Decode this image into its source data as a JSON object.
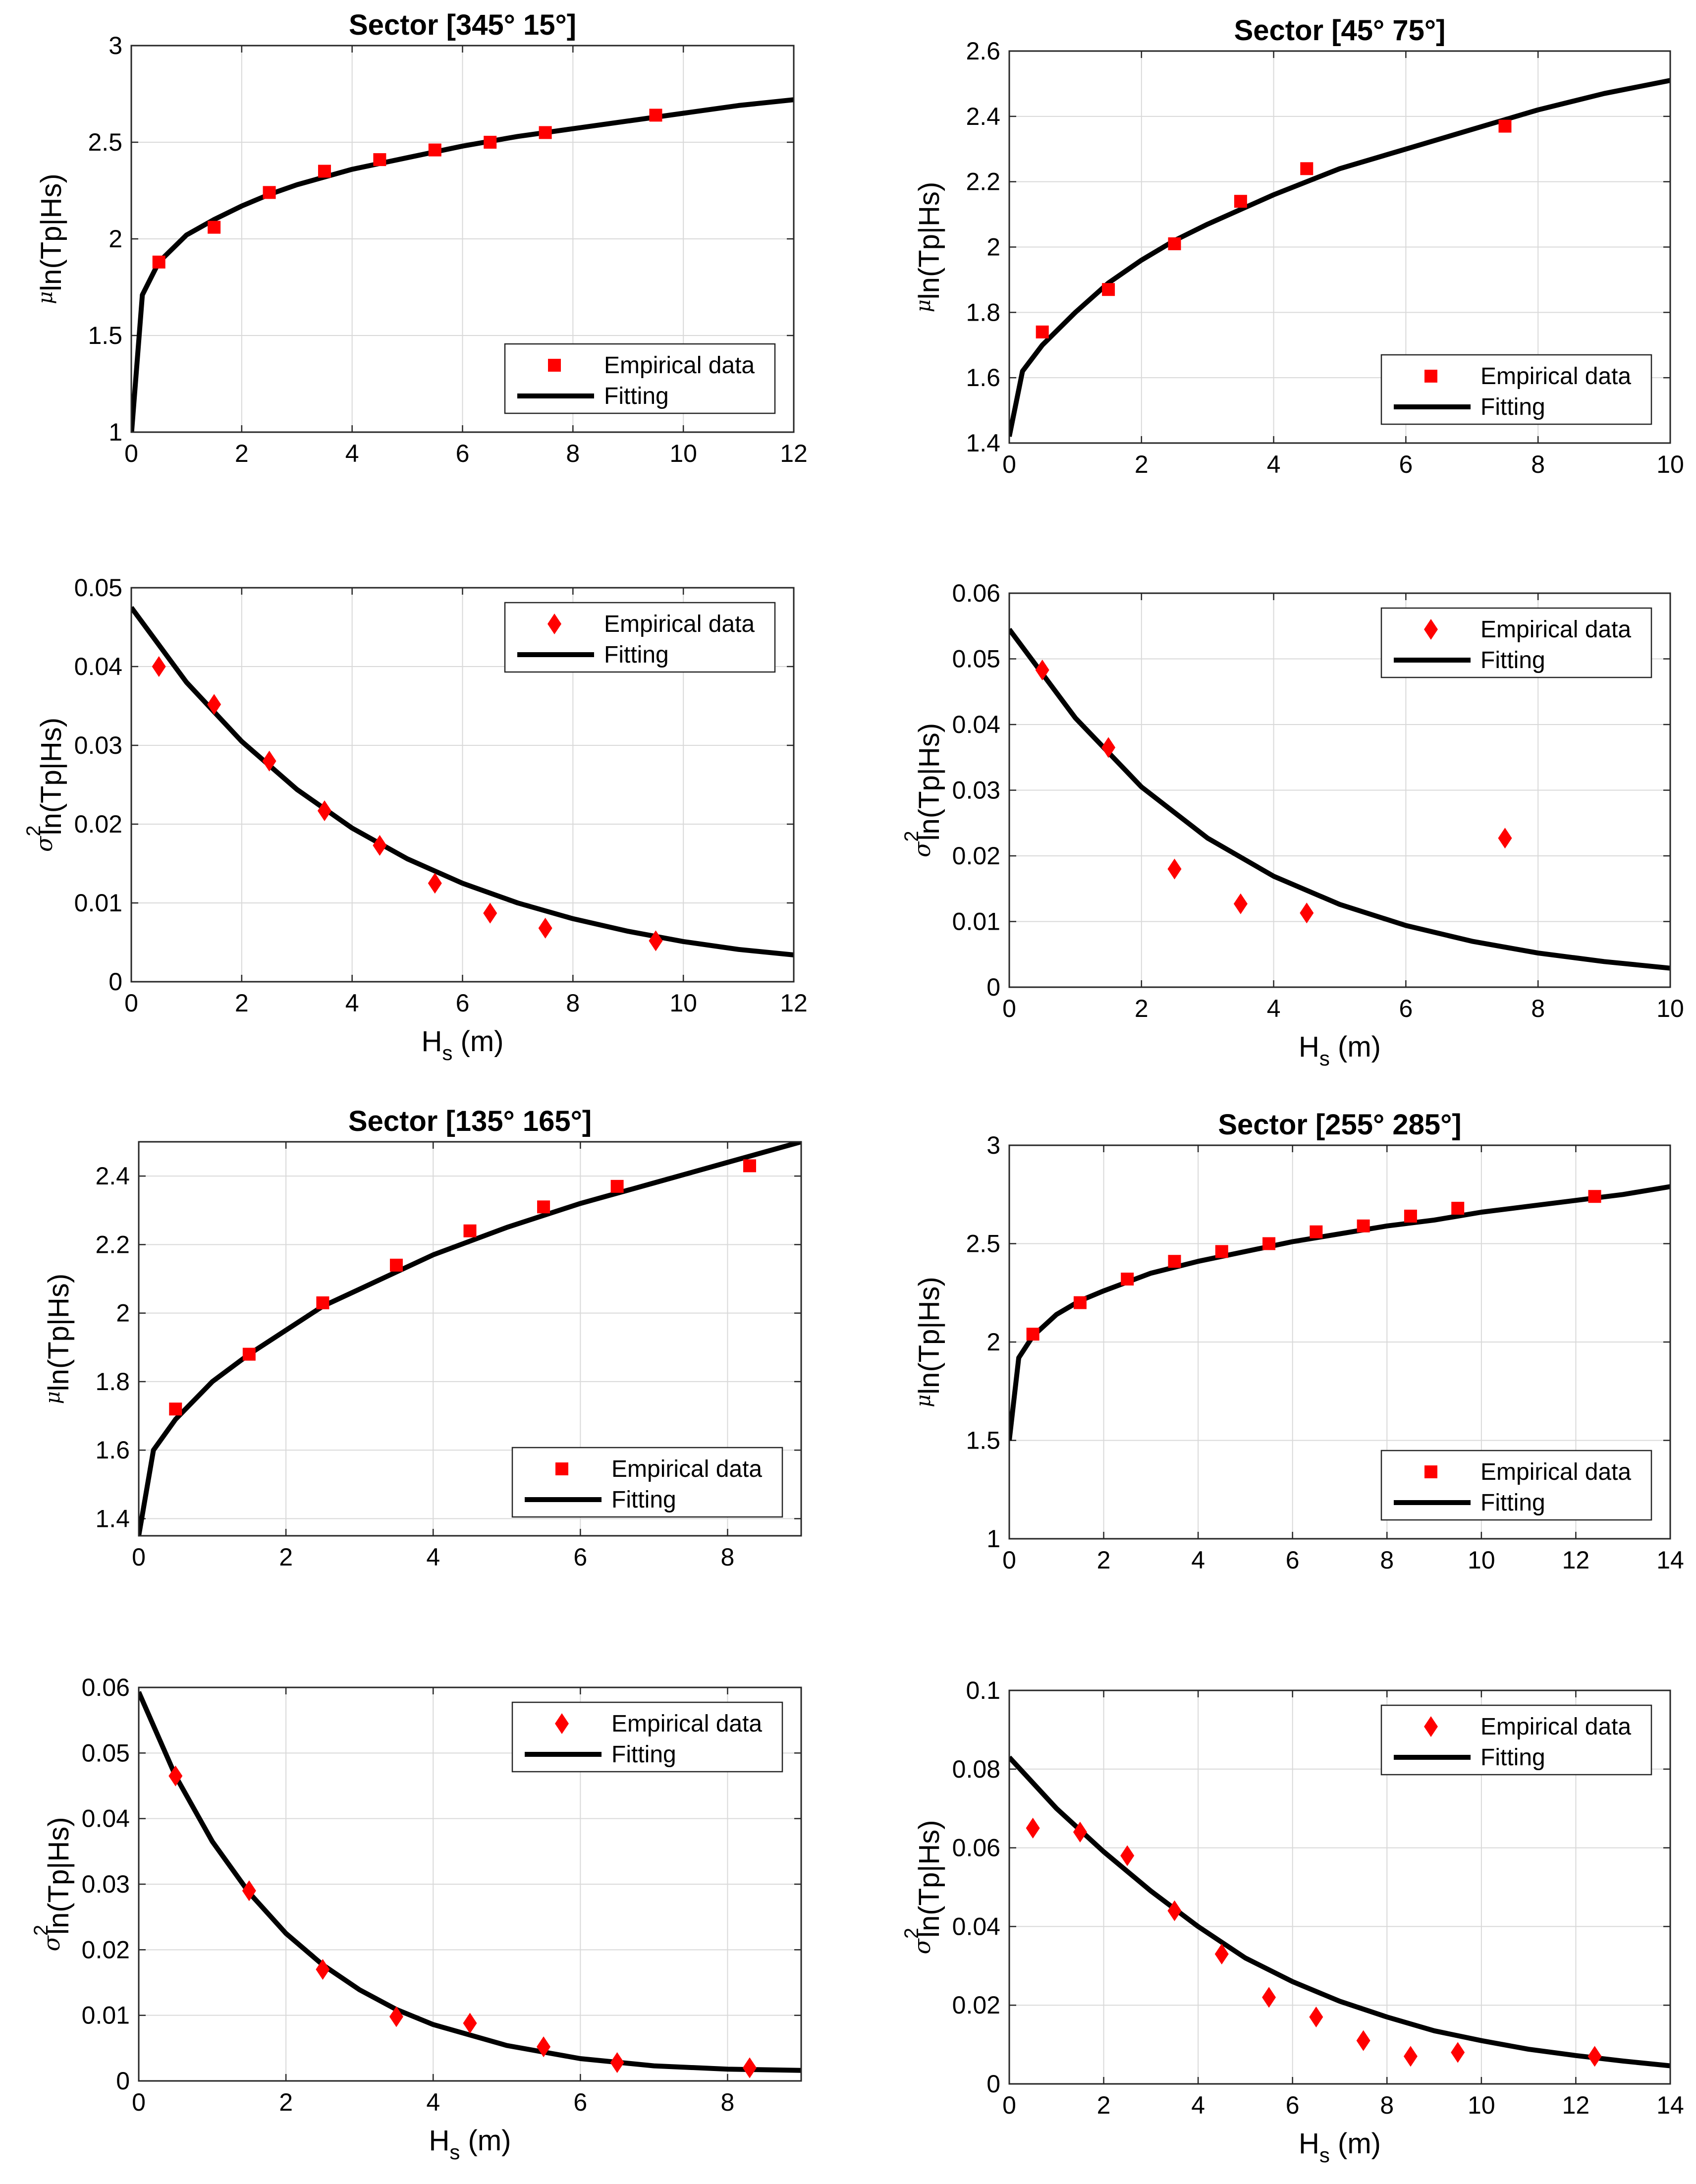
{
  "colors": {
    "marker": "#ff0000",
    "fit": "#000000",
    "grid": "#d9d9d9",
    "axis": "#262626"
  },
  "chart_data": [
    {
      "id": "p1",
      "type": "scatter",
      "title": "Sector [345° 15°]",
      "xlabel": "",
      "ylabel": "μ ln(Tp|Hs)",
      "xlim": [
        0,
        12
      ],
      "ylim": [
        1,
        3
      ],
      "xticks": [
        "0",
        "2",
        "4",
        "6",
        "8",
        "10",
        "12"
      ],
      "xtick_values": [
        0,
        2,
        4,
        6,
        8,
        10,
        12
      ],
      "yticks": [
        "1",
        "1.5",
        "2",
        "2.5",
        "3"
      ],
      "ytick_values": [
        1,
        1.5,
        2,
        2.5,
        3
      ],
      "grid": true,
      "legend_position": "bottom-right",
      "marker": "square",
      "series": [
        {
          "name": "Empirical data",
          "x": [
            0.5,
            1.5,
            2.5,
            3.5,
            4.5,
            5.5,
            6.5,
            7.5,
            9.5
          ],
          "y": [
            1.88,
            2.06,
            2.24,
            2.35,
            2.41,
            2.46,
            2.5,
            2.55,
            2.64
          ]
        },
        {
          "name": "Fitting",
          "x": [
            0,
            0.2,
            0.5,
            1,
            1.5,
            2,
            2.5,
            3,
            3.5,
            4,
            5,
            6,
            7,
            8,
            9,
            10,
            11,
            12
          ],
          "y": [
            0.98,
            1.71,
            1.88,
            2.02,
            2.1,
            2.17,
            2.23,
            2.28,
            2.32,
            2.36,
            2.42,
            2.48,
            2.53,
            2.57,
            2.61,
            2.65,
            2.69,
            2.72
          ]
        }
      ]
    },
    {
      "id": "p2",
      "type": "scatter",
      "title": "Sector [45° 75°]",
      "xlabel": "",
      "ylabel": "μ ln(Tp|Hs)",
      "xlim": [
        0,
        10
      ],
      "ylim": [
        1.4,
        2.6
      ],
      "xticks": [
        "0",
        "2",
        "4",
        "6",
        "8",
        "10"
      ],
      "xtick_values": [
        0,
        2,
        4,
        6,
        8,
        10
      ],
      "yticks": [
        "1.4",
        "1.6",
        "1.8",
        "2",
        "2.2",
        "2.4",
        "2.6"
      ],
      "ytick_values": [
        1.4,
        1.6,
        1.8,
        2,
        2.2,
        2.4,
        2.6
      ],
      "grid": true,
      "legend_position": "bottom-right",
      "marker": "square",
      "series": [
        {
          "name": "Empirical data",
          "x": [
            0.5,
            1.5,
            2.5,
            3.5,
            4.5,
            7.5
          ],
          "y": [
            1.74,
            1.87,
            2.01,
            2.14,
            2.24,
            2.37
          ]
        },
        {
          "name": "Fitting",
          "x": [
            0,
            0.2,
            0.5,
            1,
            1.5,
            2,
            2.5,
            3,
            4,
            5,
            6,
            7,
            8,
            9,
            10
          ],
          "y": [
            1.42,
            1.62,
            1.7,
            1.8,
            1.89,
            1.96,
            2.02,
            2.07,
            2.16,
            2.24,
            2.3,
            2.36,
            2.42,
            2.47,
            2.51
          ]
        }
      ]
    },
    {
      "id": "p3",
      "type": "scatter",
      "title": "",
      "xlabel": "Hs (m)",
      "ylabel": "σ² ln(Tp|Hs)",
      "xlim": [
        0,
        12
      ],
      "ylim": [
        0,
        0.05
      ],
      "xticks": [
        "0",
        "2",
        "4",
        "6",
        "8",
        "10",
        "12"
      ],
      "xtick_values": [
        0,
        2,
        4,
        6,
        8,
        10,
        12
      ],
      "yticks": [
        "0",
        "0.01",
        "0.02",
        "0.03",
        "0.04",
        "0.05"
      ],
      "ytick_values": [
        0,
        0.01,
        0.02,
        0.03,
        0.04,
        0.05
      ],
      "grid": true,
      "legend_position": "top-right",
      "marker": "diamond",
      "series": [
        {
          "name": "Empirical data",
          "x": [
            0.5,
            1.5,
            2.5,
            3.5,
            4.5,
            5.5,
            6.5,
            7.5,
            9.5
          ],
          "y": [
            0.04,
            0.0352,
            0.028,
            0.0217,
            0.0173,
            0.0125,
            0.0087,
            0.0068,
            0.0052
          ]
        },
        {
          "name": "Fitting",
          "x": [
            0,
            1,
            2,
            3,
            4,
            5,
            6,
            7,
            8,
            9,
            10,
            11,
            12
          ],
          "y": [
            0.0475,
            0.038,
            0.0305,
            0.0244,
            0.0195,
            0.0156,
            0.0125,
            0.01,
            0.008,
            0.0064,
            0.0051,
            0.0041,
            0.0034
          ]
        }
      ]
    },
    {
      "id": "p4",
      "type": "scatter",
      "title": "",
      "xlabel": "Hs (m)",
      "ylabel": "σ² ln(Tp|Hs)",
      "xlim": [
        0,
        10
      ],
      "ylim": [
        0,
        0.06
      ],
      "xticks": [
        "0",
        "2",
        "4",
        "6",
        "8",
        "10"
      ],
      "xtick_values": [
        0,
        2,
        4,
        6,
        8,
        10
      ],
      "yticks": [
        "0",
        "0.01",
        "0.02",
        "0.03",
        "0.04",
        "0.05",
        "0.06"
      ],
      "ytick_values": [
        0,
        0.01,
        0.02,
        0.03,
        0.04,
        0.05,
        0.06
      ],
      "grid": true,
      "legend_position": "top-right",
      "marker": "diamond",
      "series": [
        {
          "name": "Empirical data",
          "x": [
            0.5,
            1.5,
            2.5,
            3.5,
            4.5,
            7.5
          ],
          "y": [
            0.0483,
            0.0365,
            0.018,
            0.0127,
            0.0113,
            0.0227
          ]
        },
        {
          "name": "Fitting",
          "x": [
            0,
            1,
            2,
            3,
            4,
            5,
            6,
            7,
            8,
            9,
            10
          ],
          "y": [
            0.0545,
            0.041,
            0.0305,
            0.0227,
            0.0169,
            0.0126,
            0.0094,
            0.007,
            0.0052,
            0.0039,
            0.0029
          ]
        }
      ]
    },
    {
      "id": "p5",
      "type": "scatter",
      "title": "Sector [135° 165°]",
      "xlabel": "",
      "ylabel": "μ ln(Tp|Hs)",
      "xlim": [
        0,
        9
      ],
      "ylim": [
        1.35,
        2.5
      ],
      "xticks": [
        "0",
        "2",
        "4",
        "6",
        "8"
      ],
      "xtick_values": [
        0,
        2,
        4,
        6,
        8
      ],
      "yticks": [
        "1.4",
        "1.6",
        "1.8",
        "2",
        "2.2",
        "2.4"
      ],
      "ytick_values": [
        1.4,
        1.6,
        1.8,
        2,
        2.2,
        2.4
      ],
      "grid": true,
      "legend_position": "bottom-right",
      "marker": "square",
      "series": [
        {
          "name": "Empirical data",
          "x": [
            0.5,
            1.5,
            2.5,
            3.5,
            4.5,
            5.5,
            6.5,
            8.3
          ],
          "y": [
            1.72,
            1.88,
            2.03,
            2.14,
            2.24,
            2.31,
            2.37,
            2.43
          ]
        },
        {
          "name": "Fitting",
          "x": [
            0,
            0.2,
            0.5,
            1,
            1.5,
            2,
            2.5,
            3,
            4,
            5,
            6,
            7,
            8,
            9
          ],
          "y": [
            1.35,
            1.6,
            1.69,
            1.8,
            1.88,
            1.95,
            2.02,
            2.07,
            2.17,
            2.25,
            2.32,
            2.38,
            2.44,
            2.5
          ]
        }
      ]
    },
    {
      "id": "p6",
      "type": "scatter",
      "title": "Sector [255° 285°]",
      "xlabel": "",
      "ylabel": "μ ln(Tp|Hs)",
      "xlim": [
        0,
        14
      ],
      "ylim": [
        1,
        3
      ],
      "xticks": [
        "0",
        "2",
        "4",
        "6",
        "8",
        "10",
        "12",
        "14"
      ],
      "xtick_values": [
        0,
        2,
        4,
        6,
        8,
        10,
        12,
        14
      ],
      "yticks": [
        "1",
        "1.5",
        "2",
        "2.5",
        "3"
      ],
      "ytick_values": [
        1,
        1.5,
        2,
        2.5,
        3
      ],
      "grid": true,
      "legend_position": "bottom-right",
      "marker": "square",
      "series": [
        {
          "name": "Empirical data",
          "x": [
            0.5,
            1.5,
            2.5,
            3.5,
            4.5,
            5.5,
            6.5,
            7.5,
            8.5,
            9.5,
            12.4
          ],
          "y": [
            2.04,
            2.2,
            2.32,
            2.41,
            2.46,
            2.5,
            2.56,
            2.59,
            2.64,
            2.68,
            2.74
          ]
        },
        {
          "name": "Fitting",
          "x": [
            0,
            0.2,
            0.5,
            1,
            1.5,
            2,
            3,
            4,
            5,
            6,
            7,
            8,
            9,
            10,
            11,
            12,
            13,
            14
          ],
          "y": [
            1.5,
            1.92,
            2.03,
            2.14,
            2.21,
            2.26,
            2.35,
            2.41,
            2.46,
            2.51,
            2.55,
            2.59,
            2.62,
            2.66,
            2.69,
            2.72,
            2.75,
            2.79
          ]
        }
      ]
    },
    {
      "id": "p7",
      "type": "scatter",
      "title": "",
      "xlabel": "Hs (m)",
      "ylabel": "σ² ln(Tp|Hs)",
      "xlim": [
        0,
        9
      ],
      "ylim": [
        0,
        0.06
      ],
      "xticks": [
        "0",
        "2",
        "4",
        "6",
        "8"
      ],
      "xtick_values": [
        0,
        2,
        4,
        6,
        8
      ],
      "yticks": [
        "0",
        "0.01",
        "0.02",
        "0.03",
        "0.04",
        "0.05",
        "0.06"
      ],
      "ytick_values": [
        0,
        0.01,
        0.02,
        0.03,
        0.04,
        0.05,
        0.06
      ],
      "grid": true,
      "legend_position": "top-right",
      "marker": "diamond",
      "series": [
        {
          "name": "Empirical data",
          "x": [
            0.5,
            1.5,
            2.5,
            3.5,
            4.5,
            5.5,
            6.5,
            8.3
          ],
          "y": [
            0.0465,
            0.029,
            0.017,
            0.0098,
            0.0088,
            0.0052,
            0.0028,
            0.002
          ]
        },
        {
          "name": "Fitting",
          "x": [
            0,
            0.5,
            1,
            1.5,
            2,
            2.5,
            3,
            3.5,
            4,
            5,
            6,
            7,
            8,
            9
          ],
          "y": [
            0.0593,
            0.0465,
            0.0365,
            0.0287,
            0.0225,
            0.0177,
            0.0139,
            0.0109,
            0.0086,
            0.0054,
            0.0034,
            0.0023,
            0.0018,
            0.0016
          ]
        }
      ]
    },
    {
      "id": "p8",
      "type": "scatter",
      "title": "",
      "xlabel": "Hs (m)",
      "ylabel": "σ² ln(Tp|Hs)",
      "xlim": [
        0,
        14
      ],
      "ylim": [
        0,
        0.1
      ],
      "xticks": [
        "0",
        "2",
        "4",
        "6",
        "8",
        "10",
        "12",
        "14"
      ],
      "xtick_values": [
        0,
        2,
        4,
        6,
        8,
        10,
        12,
        14
      ],
      "yticks": [
        "0",
        "0.02",
        "0.04",
        "0.06",
        "0.08",
        "0.1"
      ],
      "ytick_values": [
        0,
        0.02,
        0.04,
        0.06,
        0.08,
        0.1
      ],
      "grid": true,
      "legend_position": "top-right",
      "marker": "diamond",
      "series": [
        {
          "name": "Empirical data",
          "x": [
            0.5,
            1.5,
            2.5,
            3.5,
            4.5,
            5.5,
            6.5,
            7.5,
            8.5,
            9.5,
            12.4
          ],
          "y": [
            0.065,
            0.064,
            0.058,
            0.044,
            0.033,
            0.022,
            0.017,
            0.011,
            0.007,
            0.008,
            0.007
          ]
        },
        {
          "name": "Fitting",
          "x": [
            0,
            1,
            2,
            3,
            4,
            5,
            6,
            7,
            8,
            9,
            10,
            11,
            12,
            13,
            14
          ],
          "y": [
            0.083,
            0.07,
            0.059,
            0.049,
            0.04,
            0.032,
            0.026,
            0.021,
            0.017,
            0.0135,
            0.011,
            0.0088,
            0.0072,
            0.0058,
            0.0046
          ]
        }
      ]
    }
  ]
}
